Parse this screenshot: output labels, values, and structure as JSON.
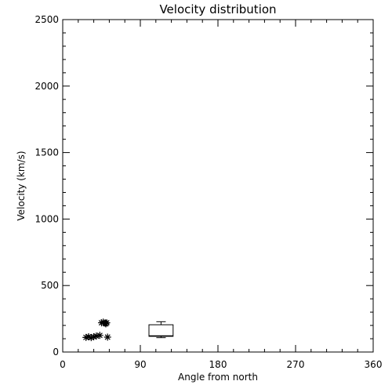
{
  "chart_data": {
    "type": "scatter",
    "title": "Velocity distribution",
    "xlabel": "Angle from north",
    "ylabel": "Velocity (km/s)",
    "xlim": [
      0,
      360
    ],
    "ylim": [
      0,
      2500
    ],
    "xticks": [
      0,
      90,
      180,
      270,
      360
    ],
    "yticks": [
      0,
      500,
      1000,
      1500,
      2000,
      2500
    ],
    "grid": false,
    "series": [
      {
        "marker": "asterisk",
        "points": [
          {
            "x": 27,
            "y": 110
          },
          {
            "x": 30,
            "y": 115
          },
          {
            "x": 33,
            "y": 108
          },
          {
            "x": 36,
            "y": 115
          },
          {
            "x": 39,
            "y": 120
          },
          {
            "x": 43,
            "y": 125
          },
          {
            "x": 45,
            "y": 220
          },
          {
            "x": 47,
            "y": 225
          },
          {
            "x": 49,
            "y": 218
          },
          {
            "x": 50,
            "y": 212
          },
          {
            "x": 51,
            "y": 220
          },
          {
            "x": 52,
            "y": 112
          }
        ]
      }
    ],
    "boxplot": {
      "x_start": 100,
      "x_end": 128,
      "x_center": 114,
      "whisker_low": 108,
      "q1": 118,
      "median": 122,
      "q3": 205,
      "whisker_high": 228
    }
  }
}
